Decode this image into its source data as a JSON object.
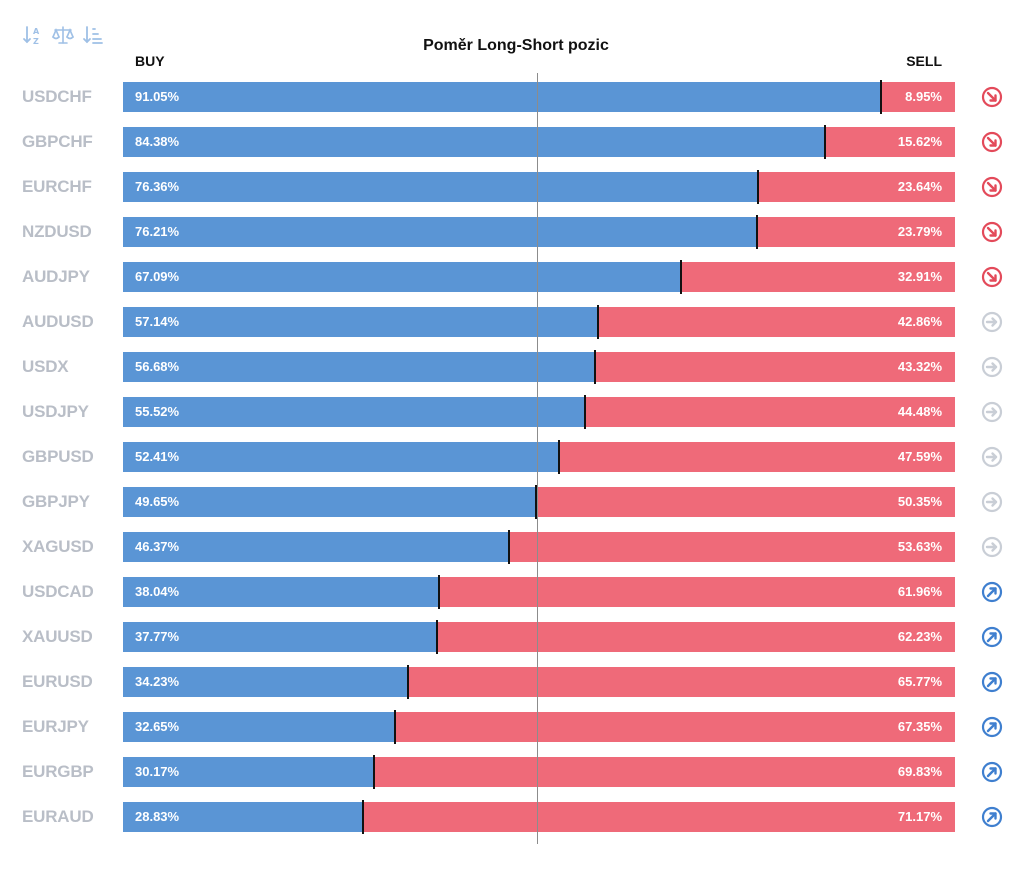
{
  "title": "Poměr Long-Short pozic",
  "buy_label": "BUY",
  "sell_label": "SELL",
  "toolbar": {
    "icons": [
      "sort-alpha-icon",
      "balance-scale-icon",
      "sort-amount-icon"
    ],
    "color": "#9fc0e6"
  },
  "colors": {
    "buy": "#5a95d5",
    "sell": "#ef6a79",
    "symbol": "#b9bec7",
    "trend_down": "#e34a5a",
    "trend_neutral": "#c9ced6",
    "trend_up": "#3f7fcf"
  },
  "chart_data": {
    "type": "bar",
    "stacked": true,
    "orientation": "horizontal",
    "title": "Poměr Long-Short pozic",
    "categories": [
      "USDCHF",
      "GBPCHF",
      "EURCHF",
      "NZDUSD",
      "AUDJPY",
      "AUDUSD",
      "USDX",
      "USDJPY",
      "GBPUSD",
      "GBPJPY",
      "XAGUSD",
      "USDCAD",
      "XAUUSD",
      "EURUSD",
      "EURJPY",
      "EURGBP",
      "EURAUD"
    ],
    "series": [
      {
        "name": "BUY",
        "values": [
          91.05,
          84.38,
          76.36,
          76.21,
          67.09,
          57.14,
          56.68,
          55.52,
          52.41,
          49.65,
          46.37,
          38.04,
          37.77,
          34.23,
          32.65,
          30.17,
          28.83
        ]
      },
      {
        "name": "SELL",
        "values": [
          8.95,
          15.62,
          23.64,
          23.79,
          32.91,
          42.86,
          43.32,
          44.48,
          47.59,
          50.35,
          53.63,
          61.96,
          62.23,
          65.77,
          67.35,
          69.83,
          71.17
        ]
      }
    ],
    "buy_labels": [
      "91.05%",
      "84.38%",
      "76.36%",
      "76.21%",
      "67.09%",
      "57.14%",
      "56.68%",
      "55.52%",
      "52.41%",
      "49.65%",
      "46.37%",
      "38.04%",
      "37.77%",
      "34.23%",
      "32.65%",
      "30.17%",
      "28.83%"
    ],
    "sell_labels": [
      "8.95%",
      "15.62%",
      "23.64%",
      "23.79%",
      "32.91%",
      "42.86%",
      "43.32%",
      "44.48%",
      "47.59%",
      "50.35%",
      "53.63%",
      "61.96%",
      "62.23%",
      "65.77%",
      "67.35%",
      "69.83%",
      "71.17%"
    ],
    "trends": [
      "down",
      "down",
      "down",
      "down",
      "down",
      "neutral",
      "neutral",
      "neutral",
      "neutral",
      "neutral",
      "neutral",
      "up",
      "up",
      "up",
      "up",
      "up",
      "up"
    ],
    "xlim": [
      0,
      100
    ],
    "grid": false,
    "legend": "top"
  }
}
